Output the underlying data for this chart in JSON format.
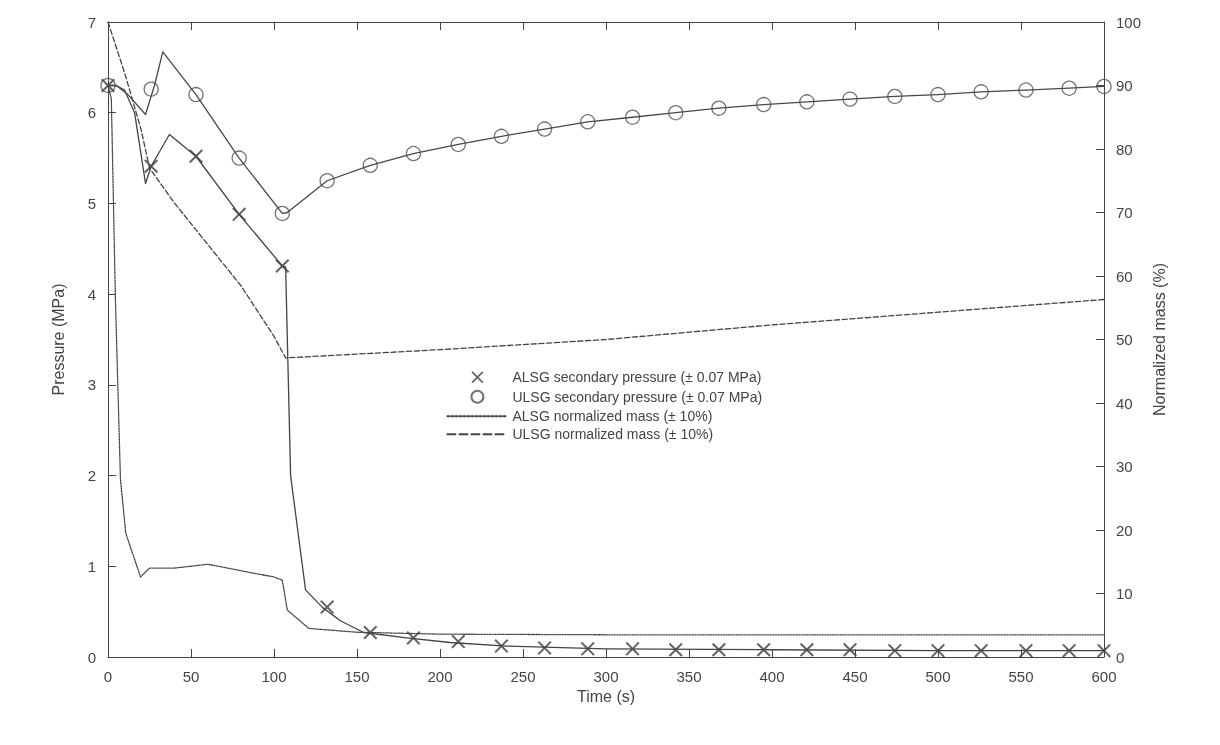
{
  "chart_data": {
    "type": "line",
    "xlabel": "Time (s)",
    "ylabel": "Pressure (MPa)",
    "y2label": "Normalized mass (%)",
    "xlim": [
      0,
      600
    ],
    "xticks": [
      0,
      50,
      100,
      150,
      200,
      250,
      300,
      350,
      400,
      450,
      500,
      550,
      600
    ],
    "ylim": [
      0,
      7
    ],
    "yticks": [
      0,
      1,
      2,
      3,
      4,
      5,
      6,
      7
    ],
    "y2lim": [
      0,
      100
    ],
    "y2ticks": [
      0,
      10,
      20,
      30,
      40,
      50,
      60,
      70,
      80,
      90,
      100
    ],
    "grid": false,
    "legend": "center",
    "series": [
      {
        "type": "line",
        "marker": "none",
        "line_style": "solid",
        "color": "#444444",
        "x": [
          0,
          5,
          10,
          16,
          22.6,
          26,
          37,
          53,
          79,
          105,
          107,
          110,
          119,
          129,
          140,
          154,
          180,
          206,
          240,
          300,
          400,
          500,
          600
        ],
        "values": [
          6.3,
          6.3,
          6.25,
          6.0,
          5.22,
          5.41,
          5.76,
          5.52,
          4.88,
          4.31,
          4.3,
          2.0,
          0.74,
          0.55,
          0.4,
          0.27,
          0.21,
          0.16,
          0.12,
          0.09,
          0.08,
          0.07,
          0.07
        ]
      },
      {
        "type": "line",
        "marker": "none",
        "line_style": "solid",
        "color": "#484848",
        "x": [
          0,
          5,
          12,
          22.6,
          28,
          33,
          53,
          79,
          105,
          108,
          132,
          158,
          184,
          211,
          237,
          263,
          289,
          316,
          342,
          368,
          395,
          421,
          447,
          474,
          500,
          526,
          553,
          579,
          600
        ],
        "values": [
          6.3,
          6.3,
          6.2,
          5.98,
          6.3,
          6.67,
          6.2,
          5.5,
          4.89,
          4.9,
          5.25,
          5.42,
          5.55,
          5.65,
          5.74,
          5.82,
          5.9,
          5.95,
          6.0,
          6.05,
          6.09,
          6.12,
          6.15,
          6.18,
          6.2,
          6.23,
          6.25,
          6.27,
          6.29
        ]
      },
      {
        "type": "scatter",
        "name": "ALSG secondary pressure (± 0.07 MPa)",
        "marker": "cross",
        "color": "#3c3c3c",
        "x": [
          0,
          26,
          53,
          79,
          105,
          132,
          158,
          184,
          211,
          237,
          263,
          289,
          316,
          342,
          368,
          395,
          421,
          447,
          474,
          500,
          526,
          553,
          579,
          600
        ],
        "values": [
          6.3,
          5.41,
          5.52,
          4.88,
          4.31,
          0.55,
          0.27,
          0.21,
          0.17,
          0.12,
          0.1,
          0.09,
          0.09,
          0.08,
          0.08,
          0.08,
          0.08,
          0.08,
          0.07,
          0.07,
          0.07,
          0.07,
          0.07,
          0.07
        ]
      },
      {
        "type": "scatter",
        "name": "ULSG secondary pressure (± 0.07 MPa)",
        "marker": "circle",
        "color": "#505050",
        "x": [
          0,
          26,
          53,
          79,
          105,
          132,
          158,
          184,
          211,
          237,
          263,
          289,
          316,
          342,
          368,
          395,
          421,
          447,
          474,
          500,
          526,
          553,
          579,
          600
        ],
        "values": [
          6.3,
          6.26,
          6.2,
          5.5,
          4.89,
          5.25,
          5.42,
          5.55,
          5.65,
          5.74,
          5.82,
          5.9,
          5.95,
          6.0,
          6.05,
          6.09,
          6.12,
          6.15,
          6.18,
          6.2,
          6.23,
          6.25,
          6.27,
          6.29
        ]
      },
      {
        "type": "line",
        "name": "ALSG normalized mass (± 10%)",
        "axis": "y2",
        "marker": "none",
        "line_style": "dotted",
        "color": "#444444",
        "x": [
          0,
          2,
          4.5,
          7.5,
          10.7,
          19.6,
          25,
          40,
          60,
          80,
          100,
          105,
          108,
          121,
          150,
          200,
          300,
          400,
          500,
          600
        ],
        "values": [
          90,
          88,
          56,
          28,
          19.5,
          12.6,
          14,
          14,
          14.6,
          13.6,
          12.6,
          12.1,
          7.4,
          4.5,
          3.9,
          3.6,
          3.5,
          3.5,
          3.5,
          3.5
        ]
      },
      {
        "type": "line",
        "name": "ULSG normalized mass (± 10%)",
        "axis": "y2",
        "marker": "none",
        "line_style": "dashed",
        "color": "#444444",
        "x": [
          0,
          10,
          20,
          25,
          40,
          60,
          80,
          100,
          107,
          200,
          300,
          400,
          500,
          600
        ],
        "values": [
          100,
          92,
          83,
          77,
          71.5,
          65,
          58.5,
          50.5,
          47.1,
          48.4,
          50,
          52.3,
          54.3,
          56.3
        ]
      }
    ]
  }
}
